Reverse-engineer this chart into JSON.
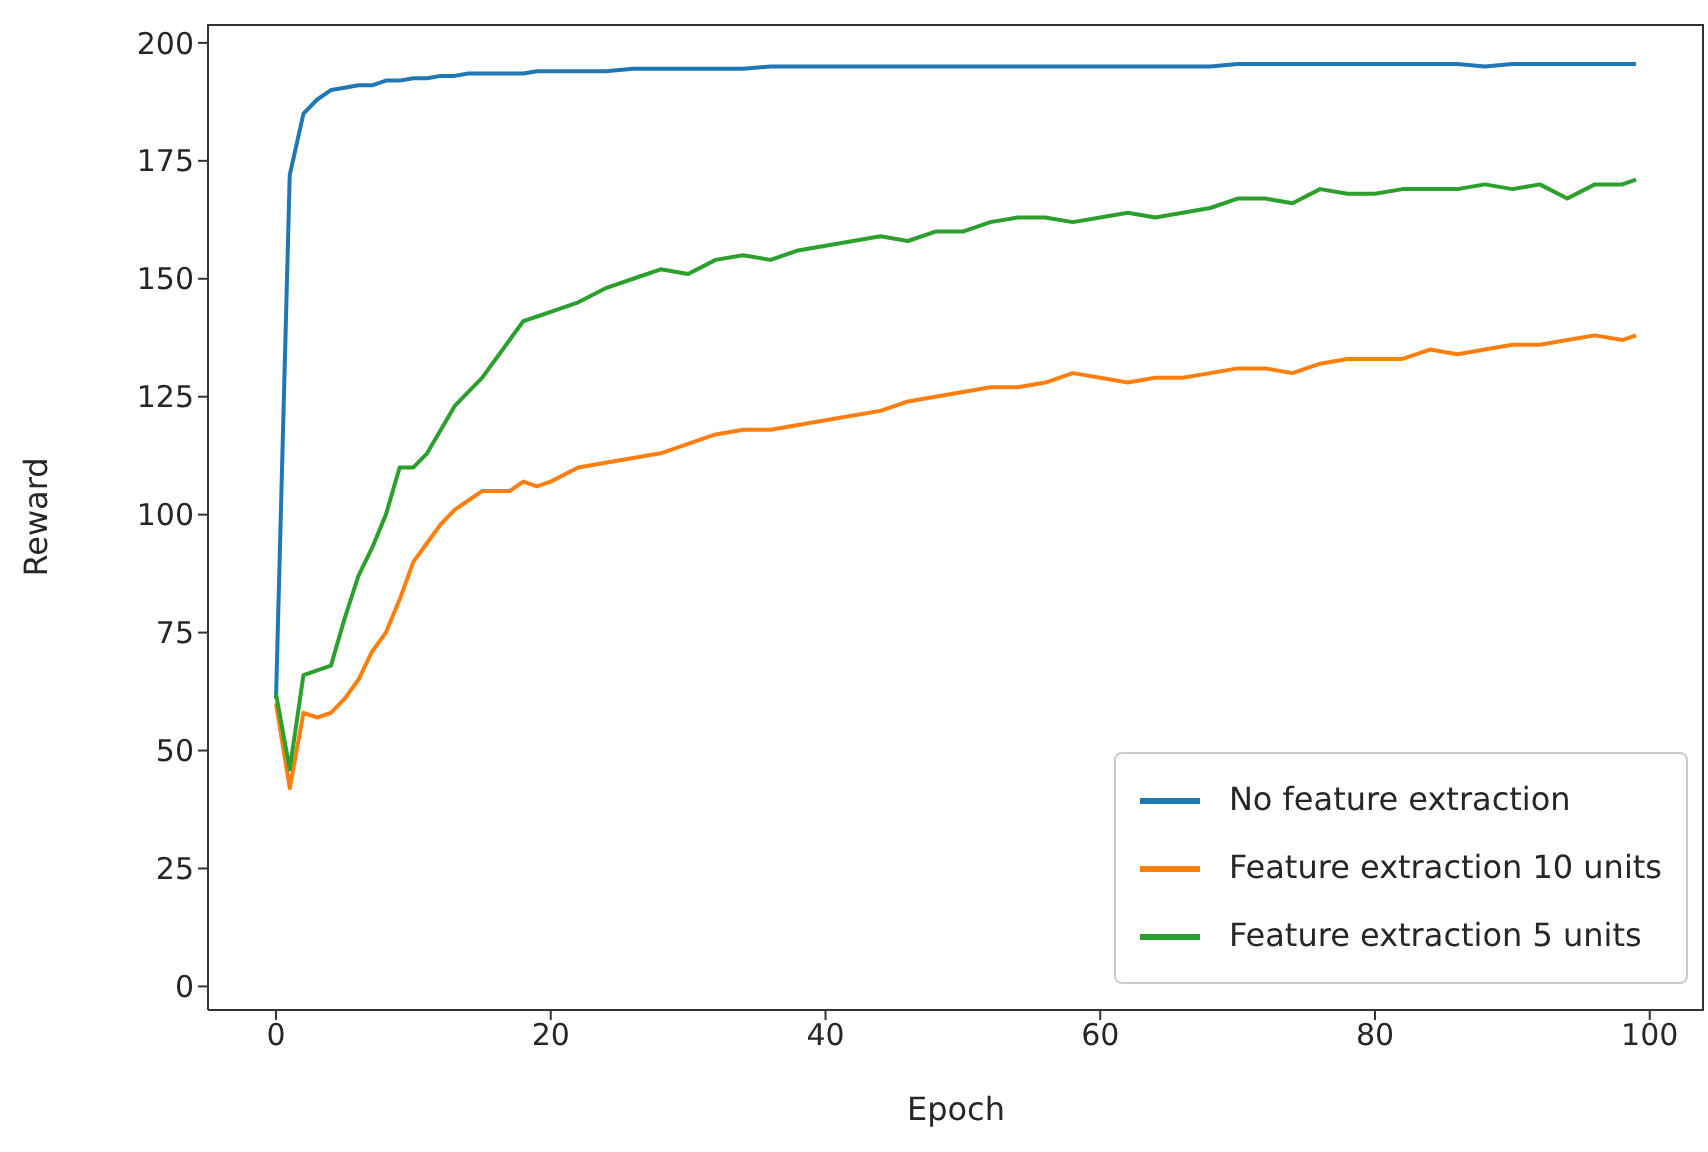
{
  "chart_data": {
    "type": "line",
    "xlabel": "Epoch",
    "ylabel": "Reward",
    "x": [
      0,
      1,
      2,
      3,
      4,
      5,
      6,
      7,
      8,
      9,
      10,
      11,
      12,
      13,
      14,
      15,
      16,
      17,
      18,
      19,
      20,
      22,
      24,
      26,
      28,
      30,
      32,
      34,
      36,
      38,
      40,
      42,
      44,
      46,
      48,
      50,
      52,
      54,
      56,
      58,
      60,
      62,
      64,
      66,
      68,
      70,
      72,
      74,
      76,
      78,
      80,
      82,
      84,
      86,
      88,
      90,
      92,
      94,
      96,
      98,
      99
    ],
    "series": [
      {
        "name": "No feature extraction",
        "color": "#1f77b4",
        "values": [
          61,
          172,
          185,
          188,
          190,
          190.5,
          191,
          191,
          192,
          192,
          192.5,
          192.5,
          193,
          193,
          193.5,
          193.5,
          193.5,
          193.5,
          193.5,
          194,
          194,
          194,
          194,
          194.5,
          194.5,
          194.5,
          194.5,
          194.5,
          195,
          195,
          195,
          195,
          195,
          195,
          195,
          195,
          195,
          195,
          195,
          195,
          195,
          195,
          195,
          195,
          195,
          195.5,
          195.5,
          195.5,
          195.5,
          195.5,
          195.5,
          195.5,
          195.5,
          195.5,
          195,
          195.5,
          195.5,
          195.5,
          195.5,
          195.5,
          195.5
        ]
      },
      {
        "name": "Feature extraction 10 units",
        "color": "#ff7f0e",
        "values": [
          60,
          42,
          58,
          57,
          58,
          61,
          65,
          71,
          75,
          82,
          90,
          94,
          98,
          101,
          103,
          105,
          105,
          105,
          107,
          106,
          107,
          110,
          111,
          112,
          113,
          115,
          117,
          118,
          118,
          119,
          120,
          121,
          122,
          124,
          125,
          126,
          127,
          127,
          128,
          130,
          129,
          128,
          129,
          129,
          130,
          131,
          131,
          130,
          132,
          133,
          133,
          133,
          135,
          134,
          135,
          136,
          136,
          137,
          138,
          137,
          138
        ]
      },
      {
        "name": "Feature extraction 5 units",
        "color": "#2ca02c",
        "values": [
          62,
          46,
          66,
          67,
          68,
          78,
          87,
          93,
          100,
          110,
          110,
          113,
          118,
          123,
          126,
          129,
          133,
          137,
          141,
          142,
          143,
          145,
          148,
          150,
          152,
          151,
          154,
          155,
          154,
          156,
          157,
          158,
          159,
          158,
          160,
          160,
          162,
          163,
          163,
          162,
          163,
          164,
          163,
          164,
          165,
          167,
          167,
          166,
          169,
          168,
          168,
          169,
          169,
          169,
          170,
          169,
          170,
          167,
          170,
          170,
          171
        ]
      }
    ],
    "xlim": [
      -4.95,
      103.95
    ],
    "xticks": [
      0,
      20,
      40,
      60,
      80,
      100
    ],
    "ylim": [
      -5,
      204
    ],
    "yticks": [
      0,
      25,
      50,
      75,
      100,
      125,
      150,
      175,
      200
    ],
    "grid": false,
    "legend": "bottom right",
    "line_style": "solid",
    "marker": "none"
  }
}
